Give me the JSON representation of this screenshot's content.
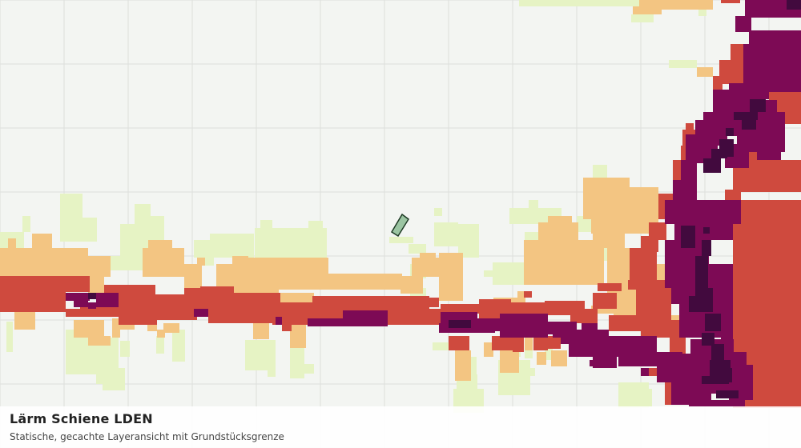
{
  "map": {
    "title": "Lärm Schiene LDEN",
    "subtitle": "Statische, gecachte Layeransicht mit Grundstücksgrenze",
    "colors": {
      "background": "#f3f5f2",
      "grid": "#dcdedb",
      "class_1": "#e6f3c4",
      "class_2": "#f3c582",
      "class_3": "#cf4a3e",
      "class_4": "#7d0a55",
      "class_5": "#420a3e",
      "parcel_fill": "#9bc5a2",
      "parcel_stroke": "#1e3a24"
    },
    "legend_classes": [
      "class_1",
      "class_2",
      "class_3",
      "class_4",
      "class_5"
    ]
  }
}
